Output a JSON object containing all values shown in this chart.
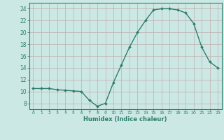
{
  "x": [
    0,
    1,
    2,
    3,
    4,
    5,
    6,
    7,
    8,
    9,
    10,
    11,
    12,
    13,
    14,
    15,
    16,
    17,
    18,
    19,
    20,
    21,
    22,
    23
  ],
  "y": [
    10.5,
    10.5,
    10.5,
    10.3,
    10.2,
    10.1,
    10.0,
    8.5,
    7.5,
    8.0,
    11.5,
    14.5,
    17.5,
    20.0,
    22.0,
    23.8,
    24.0,
    24.0,
    23.8,
    23.3,
    21.5,
    17.5,
    15.0,
    14.0
  ],
  "xlabel": "Humidex (Indice chaleur)",
  "xlim": [
    -0.5,
    23.5
  ],
  "ylim": [
    7,
    25
  ],
  "yticks": [
    8,
    10,
    12,
    14,
    16,
    18,
    20,
    22,
    24
  ],
  "xticks": [
    0,
    1,
    2,
    3,
    4,
    5,
    6,
    7,
    8,
    9,
    10,
    11,
    12,
    13,
    14,
    15,
    16,
    17,
    18,
    19,
    20,
    21,
    22,
    23
  ],
  "line_color": "#2e7d6e",
  "bg_color": "#cce8e4",
  "grid_color": "#c0aeac"
}
